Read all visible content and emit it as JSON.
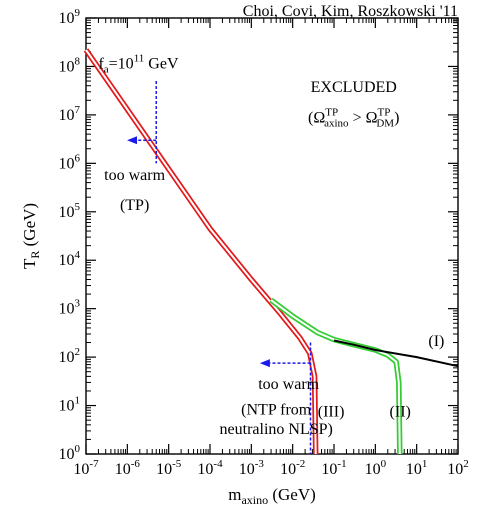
{
  "chart_data": {
    "type": "line",
    "credit": "Choi, Covi, Kim, Roszkowski '11",
    "xlabel": {
      "base": "m",
      "sub": "axino",
      "rest": " (GeV)"
    },
    "ylabel": {
      "base": "T",
      "sub": "R",
      "rest": " (GeV)"
    },
    "x_scale": "log",
    "y_scale": "log",
    "xlim": [
      1e-07,
      100
    ],
    "ylim": [
      1,
      1000000000.0
    ],
    "x_ticks": [
      {
        "value": 1e-07,
        "base": "10",
        "exp": "-7"
      },
      {
        "value": 1e-06,
        "base": "10",
        "exp": "-6"
      },
      {
        "value": 1e-05,
        "base": "10",
        "exp": "-5"
      },
      {
        "value": 0.0001,
        "base": "10",
        "exp": "-4"
      },
      {
        "value": 0.001,
        "base": "10",
        "exp": "-3"
      },
      {
        "value": 0.01,
        "base": "10",
        "exp": "-2"
      },
      {
        "value": 0.1,
        "base": "10",
        "exp": "-1"
      },
      {
        "value": 1,
        "base": "10",
        "exp": "0"
      },
      {
        "value": 10,
        "base": "10",
        "exp": "1"
      },
      {
        "value": 100,
        "base": "10",
        "exp": "2"
      }
    ],
    "y_ticks": [
      {
        "value": 1,
        "base": "10",
        "exp": "0"
      },
      {
        "value": 10,
        "base": "10",
        "exp": "1"
      },
      {
        "value": 100,
        "base": "10",
        "exp": "2"
      },
      {
        "value": 1000,
        "base": "10",
        "exp": "3"
      },
      {
        "value": 10000,
        "base": "10",
        "exp": "4"
      },
      {
        "value": 100000,
        "base": "10",
        "exp": "5"
      },
      {
        "value": 1000000,
        "base": "10",
        "exp": "6"
      },
      {
        "value": 10000000,
        "base": "10",
        "exp": "7"
      },
      {
        "value": 100000000,
        "base": "10",
        "exp": "8"
      },
      {
        "value": 1000000000,
        "base": "10",
        "exp": "9"
      }
    ],
    "grid": false,
    "series": [
      {
        "color": "#e31a1c",
        "style": "double",
        "points": [
          [
            1e-07,
            220000000.0
          ],
          [
            0.0001,
            45000.0
          ],
          [
            0.001,
            4000
          ],
          [
            0.005,
            800
          ],
          [
            0.015,
            250
          ],
          [
            0.026,
            120
          ],
          [
            0.034,
            40
          ],
          [
            0.036,
            1
          ]
        ]
      },
      {
        "color": "#33cc33",
        "style": "double",
        "points": [
          [
            0.003,
            1500
          ],
          [
            0.01,
            700
          ],
          [
            0.04,
            320
          ],
          [
            0.1,
            230
          ],
          [
            0.3,
            180
          ],
          [
            1,
            140
          ],
          [
            2,
            110
          ],
          [
            3.2,
            80
          ],
          [
            3.7,
            30
          ],
          [
            3.9,
            1
          ]
        ]
      },
      {
        "color": "#000000",
        "style": "single",
        "points": [
          [
            0.1,
            220
          ],
          [
            0.3,
            180
          ],
          [
            1,
            140
          ],
          [
            10,
            100
          ],
          [
            100,
            65
          ]
        ]
      }
    ],
    "annotations": [
      {
        "kind": "plain",
        "text": "(I)",
        "at": [
          30,
          170
        ]
      },
      {
        "kind": "plain",
        "text": "(II)",
        "at": [
          4,
          6
        ]
      },
      {
        "kind": "plain",
        "text": "(III)",
        "at": [
          0.085,
          6
        ]
      },
      {
        "kind": "plain",
        "text": "EXCLUDED",
        "at": [
          0.3,
          30000000.0
        ]
      },
      {
        "kind": "plain",
        "text": "too warm",
        "at": [
          1.5e-06,
          450000.0
        ]
      },
      {
        "kind": "plain",
        "text": "(TP)",
        "at": [
          1.5e-06,
          110000.0
        ]
      },
      {
        "kind": "plain",
        "text": "too warm",
        "at": [
          0.008,
          22
        ]
      },
      {
        "kind": "plain",
        "text": "(NTP from",
        "at": [
          0.004,
          6.5
        ]
      },
      {
        "kind": "plain",
        "text": "neutralino NLSP)",
        "at": [
          0.004,
          2.6
        ]
      }
    ],
    "fa_label": {
      "pre": "f",
      "sub": "a",
      "mid": "=10",
      "sup": "11",
      "post": " GeV",
      "at": [
        2e-07,
        90000000.0
      ]
    },
    "omega_label": {
      "pre": "(",
      "omega": "Ω",
      "sup1": "TP",
      "sub1": "axino",
      "gt": " > ",
      "sup2": "TP",
      "sub2": "DM",
      "post": ")",
      "at": [
        0.3,
        7000000.0
      ]
    },
    "limit_markers": [
      {
        "color": "#1a1aee",
        "x": 5e-06,
        "y_range": [
          1000000.0,
          50000000.0
        ],
        "arrow_from": 5e-06,
        "arrow_to": 1.1e-06,
        "arrow_y": 3000000.0
      },
      {
        "color": "#1a1aee",
        "x": 0.027,
        "y_range": [
          1,
          200.0
        ],
        "arrow_from": 0.027,
        "arrow_to": 0.0018,
        "arrow_y": 75
      }
    ]
  }
}
